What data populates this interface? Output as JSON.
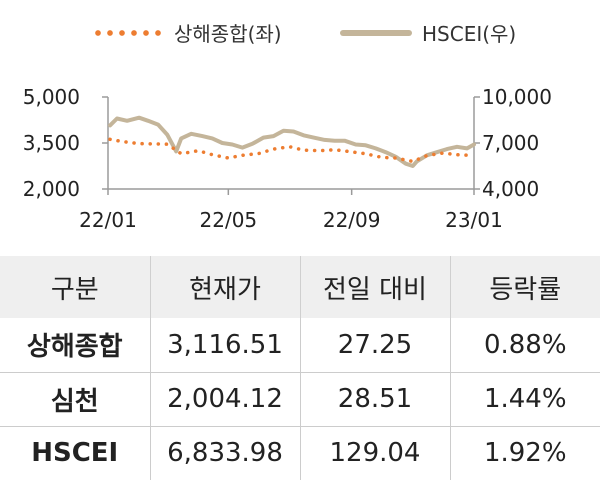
{
  "legend": {
    "series1": "상해종합(좌)",
    "series2": "HSCEI(우)",
    "series1_color": "#ed7d31",
    "series2_color": "#c4b59a"
  },
  "chart_data": {
    "type": "line",
    "x_ticks": [
      "22/01",
      "22/05",
      "22/09",
      "23/01"
    ],
    "y_left": {
      "ticks": [
        "2,000",
        "3,500",
        "5,000"
      ],
      "min": 2000,
      "max": 5000
    },
    "y_right": {
      "ticks": [
        "4,000",
        "7,000",
        "10,000"
      ],
      "min": 4000,
      "max": 10000
    },
    "series": [
      {
        "name": "상해종합(좌)",
        "axis": "left",
        "style": "dotted",
        "x": [
          "2022-01-03",
          "2022-01-15",
          "2022-02-01",
          "2022-02-15",
          "2022-03-01",
          "2022-03-15",
          "2022-04-01",
          "2022-04-15",
          "2022-05-01",
          "2022-05-15",
          "2022-06-01",
          "2022-06-15",
          "2022-07-01",
          "2022-07-15",
          "2022-08-01",
          "2022-08-15",
          "2022-09-01",
          "2022-09-15",
          "2022-10-01",
          "2022-10-15",
          "2022-11-01",
          "2022-11-15",
          "2022-12-01",
          "2022-12-15",
          "2023-01-01"
        ],
        "values": [
          3620,
          3550,
          3480,
          3470,
          3460,
          3150,
          3250,
          3120,
          3010,
          3100,
          3160,
          3300,
          3380,
          3270,
          3250,
          3280,
          3210,
          3150,
          3030,
          3010,
          2900,
          3090,
          3170,
          3120,
          3090
        ]
      },
      {
        "name": "HSCEI(우)",
        "axis": "right",
        "style": "solid",
        "x": [
          "2022-01-03",
          "2022-01-10",
          "2022-01-20",
          "2022-02-01",
          "2022-02-10",
          "2022-02-20",
          "2022-03-01",
          "2022-03-10",
          "2022-03-15",
          "2022-03-25",
          "2022-04-05",
          "2022-04-15",
          "2022-04-25",
          "2022-05-05",
          "2022-05-15",
          "2022-05-25",
          "2022-06-05",
          "2022-06-15",
          "2022-06-25",
          "2022-07-05",
          "2022-07-15",
          "2022-07-25",
          "2022-08-05",
          "2022-08-15",
          "2022-08-25",
          "2022-09-05",
          "2022-09-15",
          "2022-09-25",
          "2022-10-05",
          "2022-10-15",
          "2022-10-25",
          "2022-11-01",
          "2022-11-05",
          "2022-11-15",
          "2022-11-25",
          "2022-12-05",
          "2022-12-15",
          "2022-12-25",
          "2023-01-01"
        ],
        "values": [
          8150,
          8600,
          8450,
          8650,
          8450,
          8200,
          7550,
          6450,
          7300,
          7600,
          7450,
          7300,
          7000,
          6900,
          6700,
          6950,
          7350,
          7450,
          7800,
          7750,
          7500,
          7350,
          7200,
          7150,
          7150,
          6900,
          6850,
          6650,
          6400,
          6100,
          5650,
          5500,
          5800,
          6200,
          6400,
          6600,
          6750,
          6650,
          6900
        ]
      }
    ]
  },
  "table": {
    "headers": [
      "구분",
      "현재가",
      "전일 대비",
      "등락률"
    ],
    "rows": [
      [
        "상해종합",
        "3,116.51",
        "27.25",
        "0.88%"
      ],
      [
        "심천",
        "2,004.12",
        "28.51",
        "1.44%"
      ],
      [
        "HSCEI",
        "6,833.98",
        "129.04",
        "1.92%"
      ]
    ]
  }
}
